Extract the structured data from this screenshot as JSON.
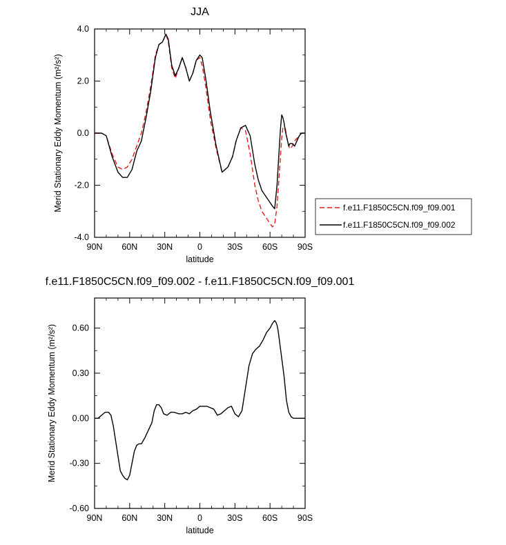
{
  "colors": {
    "series_001": "#e41a1c",
    "series_002": "#000000",
    "axis": "#000000"
  },
  "chart_data": [
    {
      "type": "line",
      "title": "JJA",
      "xlabel": "latitude",
      "ylabel": "Merid Stationary Eddy Momentum (m²/s²)",
      "xlim": [
        90,
        -90
      ],
      "ylim": [
        -4,
        4
      ],
      "xticks": [
        "90N",
        "60N",
        "30N",
        "0",
        "30S",
        "60S",
        "90S"
      ],
      "yticks": [
        "-4.0",
        "-2.0",
        "0.0",
        "2.0",
        "4.0"
      ],
      "legend_position": "right",
      "series": [
        {
          "name": "f.e11.F1850C5CN.f09_f09.001",
          "style": "dashed",
          "color": "#e41a1c",
          "x": [
            90,
            84,
            80,
            75,
            70,
            66,
            62,
            58,
            54,
            50,
            46,
            42,
            38,
            35,
            32,
            29,
            27,
            24,
            21,
            18,
            15,
            12,
            9,
            6,
            3,
            0,
            -2,
            -5,
            -9,
            -14,
            -19,
            -24,
            -28,
            -31,
            -35,
            -39,
            -43,
            -47,
            -50,
            -53,
            -56,
            -59,
            -62,
            -64,
            -66,
            -68,
            -70,
            -71,
            -73,
            -74,
            -75,
            -76,
            -77,
            -79,
            -81,
            -83,
            -85,
            -87,
            -90
          ],
          "y": [
            0.0,
            0.0,
            -0.1,
            -0.8,
            -1.3,
            -1.4,
            -1.3,
            -1.0,
            -0.5,
            0.0,
            0.8,
            1.8,
            3.0,
            3.4,
            3.5,
            3.8,
            3.5,
            2.5,
            2.1,
            2.5,
            2.9,
            2.5,
            2.0,
            2.3,
            2.8,
            2.9,
            2.6,
            1.8,
            0.5,
            -0.6,
            -1.5,
            -1.3,
            -0.9,
            -0.3,
            0.2,
            0.1,
            -0.8,
            -2.0,
            -2.6,
            -3.0,
            -3.2,
            -3.4,
            -3.6,
            -3.5,
            -2.8,
            -1.5,
            -0.2,
            0.2,
            0.2,
            -0.1,
            -0.3,
            -0.5,
            -0.6,
            -0.5,
            -0.3,
            -0.2,
            -0.1,
            0.0,
            0.0
          ]
        },
        {
          "name": "f.e11.F1850C5CN.f09_f09.002",
          "style": "solid",
          "color": "#000000",
          "x": [
            90,
            84,
            80,
            75,
            70,
            66,
            62,
            58,
            54,
            50,
            46,
            42,
            38,
            35,
            32,
            29,
            27,
            24,
            21,
            18,
            15,
            12,
            9,
            6,
            3,
            0,
            -2,
            -5,
            -9,
            -14,
            -19,
            -24,
            -28,
            -31,
            -35,
            -39,
            -43,
            -47,
            -50,
            -53,
            -56,
            -59,
            -62,
            -64,
            -66,
            -68,
            -69,
            -70,
            -71,
            -72,
            -73,
            -74,
            -75,
            -76,
            -77,
            -79,
            -81,
            -83,
            -85,
            -87,
            -90
          ],
          "y": [
            0.0,
            0.0,
            -0.1,
            -0.9,
            -1.5,
            -1.7,
            -1.7,
            -1.4,
            -0.7,
            -0.3,
            0.6,
            1.6,
            2.9,
            3.4,
            3.5,
            3.8,
            3.6,
            2.6,
            2.2,
            2.5,
            2.9,
            2.5,
            2.0,
            2.3,
            2.8,
            3.0,
            2.9,
            2.1,
            0.8,
            -0.5,
            -1.5,
            -1.3,
            -0.9,
            -0.3,
            0.2,
            0.3,
            -0.1,
            -1.2,
            -1.8,
            -2.2,
            -2.4,
            -2.6,
            -2.8,
            -2.9,
            -2.0,
            -0.5,
            0.2,
            0.7,
            0.6,
            0.4,
            0.1,
            -0.1,
            -0.3,
            -0.5,
            -0.4,
            -0.4,
            -0.5,
            -0.3,
            -0.1,
            0.0,
            0.0
          ]
        }
      ]
    },
    {
      "type": "line",
      "title": "f.e11.F1850C5CN.f09_f09.002 - f.e11.F1850C5CN.f09_f09.001",
      "xlabel": "latitude",
      "ylabel": "Merid Stationary Eddy Momentum (m²/s²)",
      "xlim": [
        90,
        -90
      ],
      "ylim": [
        -0.6,
        0.8
      ],
      "xticks": [
        "90N",
        "60N",
        "30N",
        "0",
        "30S",
        "60S",
        "90S"
      ],
      "yticks": [
        "-0.60",
        "-0.30",
        "0.00",
        "0.30",
        "0.60"
      ],
      "series": [
        {
          "name": "",
          "style": "solid",
          "color": "#000000",
          "x": [
            90,
            87,
            84,
            81,
            78,
            76,
            74,
            72,
            70,
            68,
            66,
            64,
            62,
            60,
            58,
            56,
            54,
            52,
            50,
            47,
            44,
            41,
            39,
            37,
            35,
            33,
            31,
            28,
            25,
            22,
            18,
            15,
            12,
            9,
            6,
            3,
            0,
            -3,
            -6,
            -9,
            -12,
            -15,
            -18,
            -21,
            -24,
            -27,
            -30,
            -33,
            -36,
            -39,
            -42,
            -45,
            -48,
            -51,
            -54,
            -57,
            -60,
            -62,
            -64,
            -65,
            -66,
            -67,
            -68,
            -69,
            -70,
            -71,
            -72,
            -73,
            -74,
            -76,
            -78,
            -80,
            -82,
            -84,
            -86,
            -88,
            -90
          ],
          "y": [
            0.0,
            0.0,
            0.02,
            0.04,
            0.04,
            0.02,
            -0.05,
            -0.15,
            -0.25,
            -0.35,
            -0.38,
            -0.4,
            -0.41,
            -0.38,
            -0.3,
            -0.22,
            -0.18,
            -0.17,
            -0.17,
            -0.13,
            -0.08,
            -0.03,
            0.05,
            0.09,
            0.09,
            0.07,
            0.03,
            0.02,
            0.04,
            0.04,
            0.03,
            0.03,
            0.04,
            0.03,
            0.05,
            0.06,
            0.08,
            0.08,
            0.08,
            0.07,
            0.06,
            0.02,
            0.03,
            0.05,
            0.07,
            0.08,
            0.03,
            0.01,
            0.05,
            0.2,
            0.35,
            0.43,
            0.46,
            0.48,
            0.52,
            0.57,
            0.6,
            0.63,
            0.65,
            0.64,
            0.62,
            0.58,
            0.52,
            0.46,
            0.4,
            0.34,
            0.28,
            0.2,
            0.12,
            0.04,
            0.01,
            0.0,
            0.0,
            0.0,
            0.0,
            0.0,
            0.0
          ]
        }
      ]
    }
  ]
}
